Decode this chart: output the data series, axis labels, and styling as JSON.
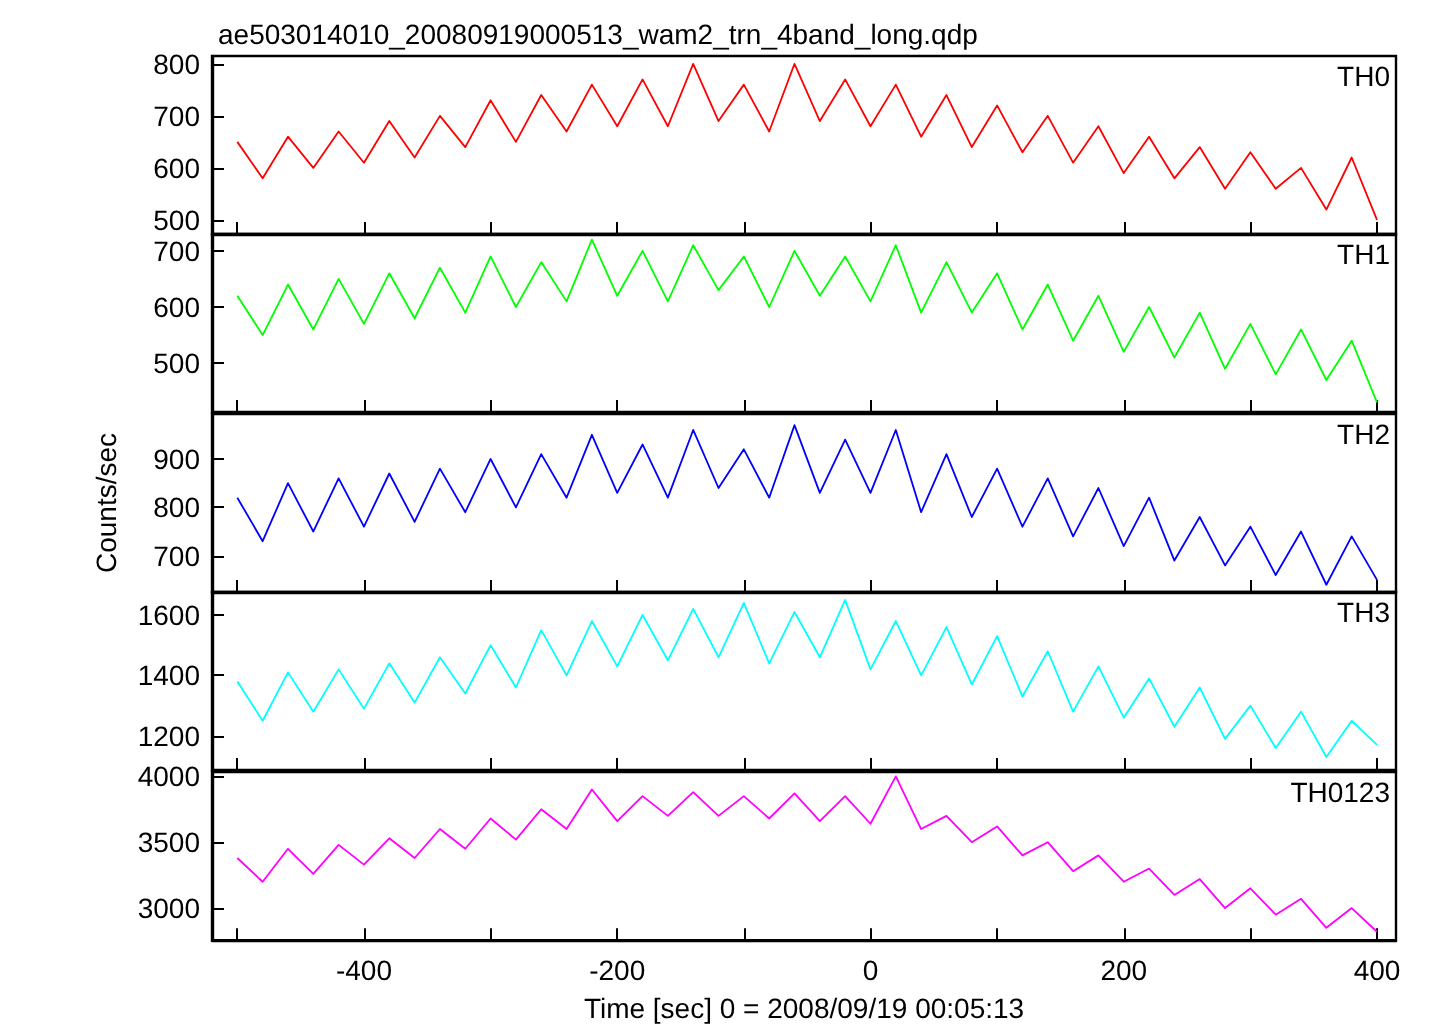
{
  "chart_data": [
    {
      "type": "line",
      "title": "ae503014010_20080919000513_wam2_trn_4band_long.qdp",
      "annotations": [
        "TH0"
      ],
      "tick_labels": "y",
      "x": [
        -500,
        -480,
        -460,
        -440,
        -420,
        -400,
        -380,
        -360,
        -340,
        -320,
        -300,
        -280,
        -260,
        -240,
        -220,
        -200,
        -180,
        -160,
        -140,
        -120,
        -100,
        -80,
        -60,
        -40,
        -20,
        0,
        20,
        40,
        60,
        80,
        100,
        120,
        140,
        160,
        180,
        200,
        220,
        240,
        260,
        280,
        300,
        320,
        340,
        360,
        380,
        400
      ],
      "xlim": [
        -520,
        415
      ],
      "xticks": [
        {
          "value": -500,
          "label": null
        },
        -400,
        {
          "value": -300,
          "label": null
        },
        -200,
        {
          "value": -100,
          "label": null
        },
        0,
        {
          "value": 100,
          "label": null
        },
        200,
        {
          "value": 300,
          "label": null
        },
        400
      ],
      "ylim": [
        473,
        815
      ],
      "yticks": [
        500,
        600,
        700,
        800
      ],
      "series": [
        {
          "color": "#ff0000",
          "values": [
            650,
            580,
            660,
            600,
            670,
            610,
            690,
            620,
            700,
            640,
            730,
            650,
            740,
            670,
            760,
            680,
            770,
            680,
            800,
            690,
            760,
            670,
            800,
            690,
            770,
            680,
            760,
            660,
            740,
            640,
            720,
            630,
            700,
            610,
            680,
            590,
            660,
            580,
            640,
            560,
            630,
            560,
            600,
            520,
            620,
            500
          ]
        }
      ]
    },
    {
      "type": "line",
      "annotations": [
        "TH1"
      ],
      "tick_labels": "y",
      "x": [
        -500,
        -480,
        -460,
        -440,
        -420,
        -400,
        -380,
        -360,
        -340,
        -320,
        -300,
        -280,
        -260,
        -240,
        -220,
        -200,
        -180,
        -160,
        -140,
        -120,
        -100,
        -80,
        -60,
        -40,
        -20,
        0,
        20,
        40,
        60,
        80,
        100,
        120,
        140,
        160,
        180,
        200,
        220,
        240,
        260,
        280,
        300,
        320,
        340,
        360,
        380,
        400
      ],
      "xlim": [
        -520,
        415
      ],
      "xticks": [
        {
          "value": -500,
          "label": null
        },
        -400,
        {
          "value": -300,
          "label": null
        },
        -200,
        {
          "value": -100,
          "label": null
        },
        0,
        {
          "value": 100,
          "label": null
        },
        200,
        {
          "value": 300,
          "label": null
        },
        400
      ],
      "ylim": [
        413,
        730
      ],
      "yticks": [
        500,
        600,
        700
      ],
      "series": [
        {
          "color": "#00ff00",
          "values": [
            620,
            550,
            640,
            560,
            650,
            570,
            660,
            580,
            670,
            590,
            690,
            600,
            680,
            610,
            720,
            620,
            700,
            610,
            710,
            630,
            690,
            600,
            700,
            620,
            690,
            610,
            710,
            590,
            680,
            590,
            660,
            560,
            640,
            540,
            620,
            520,
            600,
            510,
            590,
            490,
            570,
            480,
            560,
            470,
            540,
            430
          ]
        }
      ]
    },
    {
      "type": "line",
      "ylabel": "Counts/sec",
      "annotations": [
        "TH2"
      ],
      "tick_labels": "y",
      "x": [
        -500,
        -480,
        -460,
        -440,
        -420,
        -400,
        -380,
        -360,
        -340,
        -320,
        -300,
        -280,
        -260,
        -240,
        -220,
        -200,
        -180,
        -160,
        -140,
        -120,
        -100,
        -80,
        -60,
        -40,
        -20,
        0,
        20,
        40,
        60,
        80,
        100,
        120,
        140,
        160,
        180,
        200,
        220,
        240,
        260,
        280,
        300,
        320,
        340,
        360,
        380,
        400
      ],
      "xlim": [
        -520,
        415
      ],
      "xticks": [
        {
          "value": -500,
          "label": null
        },
        -400,
        {
          "value": -300,
          "label": null
        },
        -200,
        {
          "value": -100,
          "label": null
        },
        0,
        {
          "value": 100,
          "label": null
        },
        200,
        {
          "value": 300,
          "label": null
        },
        400
      ],
      "ylim": [
        625,
        993
      ],
      "yticks": [
        700,
        800,
        900
      ],
      "series": [
        {
          "color": "#0000ff",
          "values": [
            820,
            730,
            850,
            750,
            860,
            760,
            870,
            770,
            880,
            790,
            900,
            800,
            910,
            820,
            950,
            830,
            930,
            820,
            960,
            840,
            920,
            820,
            970,
            830,
            940,
            830,
            960,
            790,
            910,
            780,
            880,
            760,
            860,
            740,
            840,
            720,
            820,
            690,
            780,
            680,
            760,
            660,
            750,
            640,
            740,
            650
          ]
        }
      ]
    },
    {
      "type": "line",
      "annotations": [
        "TH3"
      ],
      "tick_labels": "y",
      "x": [
        -500,
        -480,
        -460,
        -440,
        -420,
        -400,
        -380,
        -360,
        -340,
        -320,
        -300,
        -280,
        -260,
        -240,
        -220,
        -200,
        -180,
        -160,
        -140,
        -120,
        -100,
        -80,
        -60,
        -40,
        -20,
        0,
        20,
        40,
        60,
        80,
        100,
        120,
        140,
        160,
        180,
        200,
        220,
        240,
        260,
        280,
        300,
        320,
        340,
        360,
        380,
        400
      ],
      "xlim": [
        -520,
        415
      ],
      "xticks": [
        {
          "value": -500,
          "label": null
        },
        -400,
        {
          "value": -300,
          "label": null
        },
        -200,
        {
          "value": -100,
          "label": null
        },
        0,
        {
          "value": 100,
          "label": null
        },
        200,
        {
          "value": 300,
          "label": null
        },
        400
      ],
      "ylim": [
        1087,
        1676
      ],
      "yticks": [
        1200,
        1400,
        1600
      ],
      "series": [
        {
          "color": "#00ffff",
          "values": [
            1380,
            1250,
            1410,
            1280,
            1420,
            1290,
            1440,
            1310,
            1460,
            1340,
            1500,
            1360,
            1550,
            1400,
            1580,
            1430,
            1600,
            1450,
            1620,
            1460,
            1640,
            1440,
            1610,
            1460,
            1650,
            1420,
            1580,
            1400,
            1560,
            1370,
            1530,
            1330,
            1480,
            1280,
            1430,
            1260,
            1390,
            1230,
            1360,
            1190,
            1300,
            1160,
            1280,
            1130,
            1250,
            1170
          ]
        }
      ]
    },
    {
      "type": "line",
      "xlabel": "Time [sec] 0 = 2008/09/19 00:05:13",
      "annotations": [
        "TH0123"
      ],
      "x": [
        -500,
        -480,
        -460,
        -440,
        -420,
        -400,
        -380,
        -360,
        -340,
        -320,
        -300,
        -280,
        -260,
        -240,
        -220,
        -200,
        -180,
        -160,
        -140,
        -120,
        -100,
        -80,
        -60,
        -40,
        -20,
        0,
        20,
        40,
        60,
        80,
        100,
        120,
        140,
        160,
        180,
        200,
        220,
        240,
        260,
        280,
        300,
        320,
        340,
        360,
        380,
        400
      ],
      "xlim": [
        -520,
        415
      ],
      "xticks": [
        {
          "value": -500,
          "label": null
        },
        -400,
        {
          "value": -300,
          "label": null
        },
        -200,
        {
          "value": -100,
          "label": null
        },
        0,
        {
          "value": 100,
          "label": null
        },
        200,
        {
          "value": 300,
          "label": null
        },
        400
      ],
      "ylim": [
        2756,
        4033
      ],
      "yticks": [
        3000,
        3500,
        4000
      ],
      "series": [
        {
          "color": "#ff00ff",
          "values": [
            3380,
            3200,
            3450,
            3260,
            3480,
            3330,
            3530,
            3380,
            3600,
            3450,
            3680,
            3520,
            3750,
            3600,
            3900,
            3660,
            3850,
            3700,
            3880,
            3700,
            3850,
            3680,
            3870,
            3660,
            3850,
            3640,
            4000,
            3600,
            3700,
            3500,
            3620,
            3400,
            3500,
            3280,
            3400,
            3200,
            3300,
            3100,
            3220,
            3000,
            3150,
            2950,
            3070,
            2850,
            3000,
            2820
          ]
        }
      ]
    }
  ]
}
